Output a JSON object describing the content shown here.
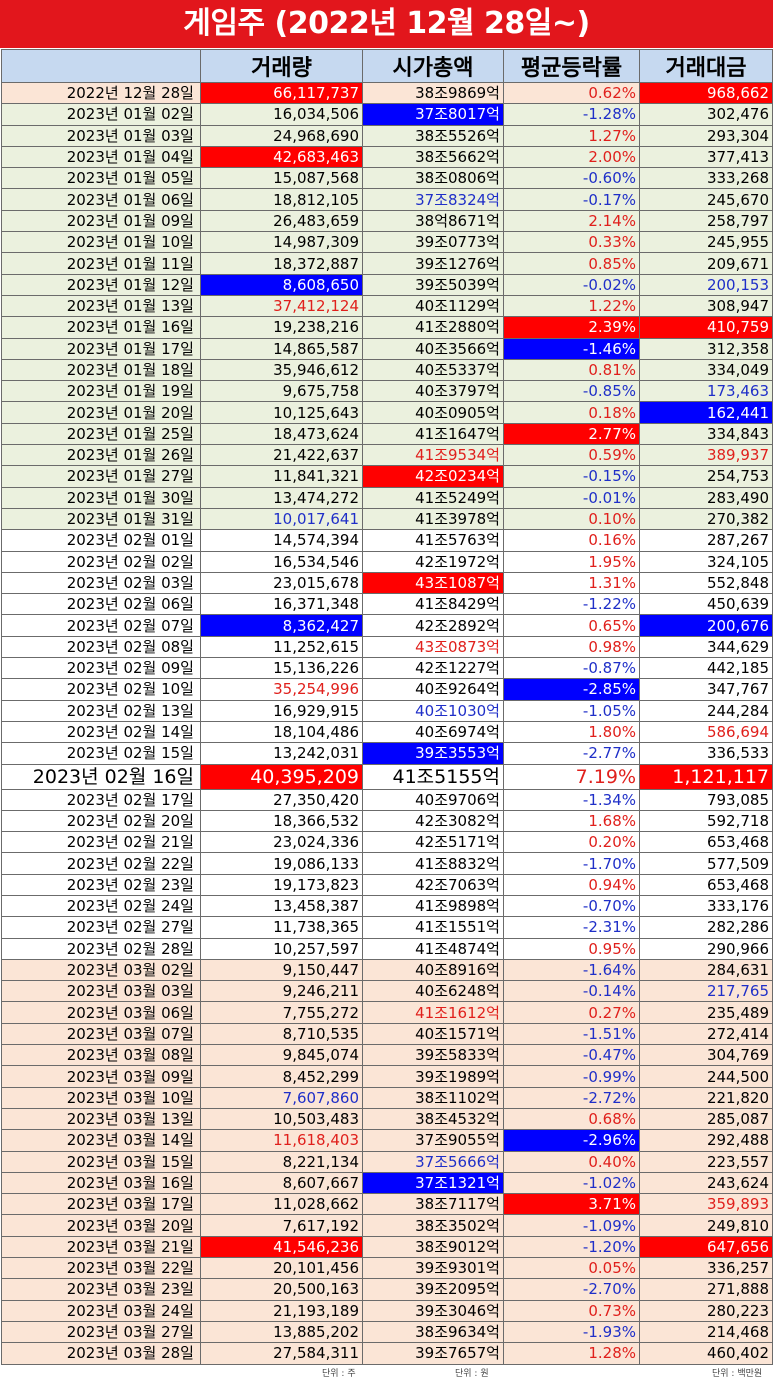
{
  "title": "게임주 (2022년 12월 28일~)",
  "columns": [
    "",
    "거래량",
    "시가총액",
    "평균등락률",
    "거래대금"
  ],
  "units": [
    "단위 : 주",
    "단위 : 원",
    "단위 : 백만원"
  ],
  "colors": {
    "title_bg": "#e2161c",
    "header_bg": "#c6d9f0",
    "band_pink": "#fbe5d6",
    "band_green": "#ebf1de",
    "band_white": "#ffffff",
    "highlight_red": "#ff0000",
    "highlight_blue": "#0000ff",
    "text_red": "#e0201c",
    "text_blue": "#1f2fc8",
    "text_black": "#000000"
  },
  "rows": [
    {
      "date": "2022년 12월 28일",
      "volume": "66,117,737",
      "cap": "38조9869억",
      "change": "0.62%",
      "value": "968,662",
      "band": "pink",
      "vs": "hr",
      "cs": "k",
      "chs": "r",
      "vls": "hr"
    },
    {
      "date": "2023년 01월 02일",
      "volume": "16,034,506",
      "cap": "37조8017억",
      "change": "-1.28%",
      "value": "302,476",
      "band": "green",
      "vs": "k",
      "cs": "hb",
      "chs": "b",
      "vls": "k"
    },
    {
      "date": "2023년 01월 03일",
      "volume": "24,968,690",
      "cap": "38조5526억",
      "change": "1.27%",
      "value": "293,304",
      "band": "green",
      "vs": "k",
      "cs": "k",
      "chs": "r",
      "vls": "k"
    },
    {
      "date": "2023년 01월 04일",
      "volume": "42,683,463",
      "cap": "38조5662억",
      "change": "2.00%",
      "value": "377,413",
      "band": "green",
      "vs": "hr",
      "cs": "k",
      "chs": "r",
      "vls": "k"
    },
    {
      "date": "2023년 01월 05일",
      "volume": "15,087,568",
      "cap": "38조0806억",
      "change": "-0.60%",
      "value": "333,268",
      "band": "green",
      "vs": "k",
      "cs": "k",
      "chs": "b",
      "vls": "k"
    },
    {
      "date": "2023년 01월 06일",
      "volume": "18,812,105",
      "cap": "37조8324억",
      "change": "-0.17%",
      "value": "245,670",
      "band": "green",
      "vs": "k",
      "cs": "b",
      "chs": "b",
      "vls": "k"
    },
    {
      "date": "2023년 01월 09일",
      "volume": "26,483,659",
      "cap": "38억8671억",
      "change": "2.14%",
      "value": "258,797",
      "band": "green",
      "vs": "k",
      "cs": "k",
      "chs": "r",
      "vls": "k"
    },
    {
      "date": "2023년 01월 10일",
      "volume": "14,987,309",
      "cap": "39조0773억",
      "change": "0.33%",
      "value": "245,955",
      "band": "green",
      "vs": "k",
      "cs": "k",
      "chs": "r",
      "vls": "k"
    },
    {
      "date": "2023년 01월 11일",
      "volume": "18,372,887",
      "cap": "39조1276억",
      "change": "0.85%",
      "value": "209,671",
      "band": "green",
      "vs": "k",
      "cs": "k",
      "chs": "r",
      "vls": "k"
    },
    {
      "date": "2023년 01월 12일",
      "volume": "8,608,650",
      "cap": "39조5039억",
      "change": "-0.02%",
      "value": "200,153",
      "band": "green",
      "vs": "hb",
      "cs": "k",
      "chs": "b",
      "vls": "b"
    },
    {
      "date": "2023년 01월 13일",
      "volume": "37,412,124",
      "cap": "40조1129억",
      "change": "1.22%",
      "value": "308,947",
      "band": "green",
      "vs": "r",
      "cs": "k",
      "chs": "r",
      "vls": "k"
    },
    {
      "date": "2023년 01월 16일",
      "volume": "19,238,216",
      "cap": "41조2880억",
      "change": "2.39%",
      "value": "410,759",
      "band": "green",
      "vs": "k",
      "cs": "k",
      "chs": "hr",
      "vls": "hr"
    },
    {
      "date": "2023년 01월 17일",
      "volume": "14,865,587",
      "cap": "40조3566억",
      "change": "-1.46%",
      "value": "312,358",
      "band": "green",
      "vs": "k",
      "cs": "k",
      "chs": "hb",
      "vls": "k"
    },
    {
      "date": "2023년 01월 18일",
      "volume": "35,946,612",
      "cap": "40조5337억",
      "change": "0.81%",
      "value": "334,049",
      "band": "green",
      "vs": "k",
      "cs": "k",
      "chs": "r",
      "vls": "k"
    },
    {
      "date": "2023년 01월 19일",
      "volume": "9,675,758",
      "cap": "40조3797억",
      "change": "-0.85%",
      "value": "173,463",
      "band": "green",
      "vs": "k",
      "cs": "k",
      "chs": "b",
      "vls": "b"
    },
    {
      "date": "2023년 01월 20일",
      "volume": "10,125,643",
      "cap": "40조0905억",
      "change": "0.18%",
      "value": "162,441",
      "band": "green",
      "vs": "k",
      "cs": "k",
      "chs": "r",
      "vls": "hb"
    },
    {
      "date": "2023년 01월 25일",
      "volume": "18,473,624",
      "cap": "41조1647억",
      "change": "2.77%",
      "value": "334,843",
      "band": "green",
      "vs": "k",
      "cs": "k",
      "chs": "hr",
      "vls": "k"
    },
    {
      "date": "2023년 01월 26일",
      "volume": "21,422,637",
      "cap": "41조9534억",
      "change": "0.59%",
      "value": "389,937",
      "band": "green",
      "vs": "k",
      "cs": "r",
      "chs": "r",
      "vls": "r"
    },
    {
      "date": "2023년 01월 27일",
      "volume": "11,841,321",
      "cap": "42조0234억",
      "change": "-0.15%",
      "value": "254,753",
      "band": "green",
      "vs": "k",
      "cs": "hr",
      "chs": "b",
      "vls": "k"
    },
    {
      "date": "2023년 01월 30일",
      "volume": "13,474,272",
      "cap": "41조5249억",
      "change": "-0.01%",
      "value": "283,490",
      "band": "green",
      "vs": "k",
      "cs": "k",
      "chs": "b",
      "vls": "k"
    },
    {
      "date": "2023년 01월 31일",
      "volume": "10,017,641",
      "cap": "41조3978억",
      "change": "0.10%",
      "value": "270,382",
      "band": "green",
      "vs": "b",
      "cs": "k",
      "chs": "r",
      "vls": "k"
    },
    {
      "date": "2023년 02월 01일",
      "volume": "14,574,394",
      "cap": "41조5763억",
      "change": "0.16%",
      "value": "287,267",
      "band": "white",
      "vs": "k",
      "cs": "k",
      "chs": "r",
      "vls": "k"
    },
    {
      "date": "2023년 02월 02일",
      "volume": "16,534,546",
      "cap": "42조1972억",
      "change": "1.95%",
      "value": "324,105",
      "band": "white",
      "vs": "k",
      "cs": "k",
      "chs": "r",
      "vls": "k"
    },
    {
      "date": "2023년 02월 03일",
      "volume": "23,015,678",
      "cap": "43조1087억",
      "change": "1.31%",
      "value": "552,848",
      "band": "white",
      "vs": "k",
      "cs": "hr",
      "chs": "r",
      "vls": "k"
    },
    {
      "date": "2023년 02월 06일",
      "volume": "16,371,348",
      "cap": "41조8429억",
      "change": "-1.22%",
      "value": "450,639",
      "band": "white",
      "vs": "k",
      "cs": "k",
      "chs": "b",
      "vls": "k"
    },
    {
      "date": "2023년 02월 07일",
      "volume": "8,362,427",
      "cap": "42조2892억",
      "change": "0.65%",
      "value": "200,676",
      "band": "white",
      "vs": "hb",
      "cs": "k",
      "chs": "r",
      "vls": "hb"
    },
    {
      "date": "2023년 02월 08일",
      "volume": "11,252,615",
      "cap": "43조0873억",
      "change": "0.98%",
      "value": "344,629",
      "band": "white",
      "vs": "k",
      "cs": "r",
      "chs": "r",
      "vls": "k"
    },
    {
      "date": "2023년 02월 09일",
      "volume": "15,136,226",
      "cap": "42조1227억",
      "change": "-0.87%",
      "value": "442,185",
      "band": "white",
      "vs": "k",
      "cs": "k",
      "chs": "b",
      "vls": "k"
    },
    {
      "date": "2023년 02월 10일",
      "volume": "35,254,996",
      "cap": "40조9264억",
      "change": "-2.85%",
      "value": "347,767",
      "band": "white",
      "vs": "r",
      "cs": "k",
      "chs": "hb",
      "vls": "k"
    },
    {
      "date": "2023년 02월 13일",
      "volume": "16,929,915",
      "cap": "40조1030억",
      "change": "-1.05%",
      "value": "244,284",
      "band": "white",
      "vs": "k",
      "cs": "b",
      "chs": "b",
      "vls": "k"
    },
    {
      "date": "2023년 02월 14일",
      "volume": "18,104,486",
      "cap": "40조6974억",
      "change": "1.80%",
      "value": "586,694",
      "band": "white",
      "vs": "k",
      "cs": "k",
      "chs": "r",
      "vls": "r"
    },
    {
      "date": "2023년 02월 15일",
      "volume": "13,242,031",
      "cap": "39조3553억",
      "change": "-2.77%",
      "value": "336,533",
      "band": "white",
      "vs": "k",
      "cs": "hb",
      "chs": "b",
      "vls": "k"
    },
    {
      "date": "2023년 02월 16일",
      "volume": "40,395,209",
      "cap": "41조5155억",
      "change": "7.19%",
      "value": "1,121,117",
      "band": "white",
      "big": true,
      "vs": "hr",
      "cs": "k",
      "chs": "r",
      "vls": "hr"
    },
    {
      "date": "2023년 02월 17일",
      "volume": "27,350,420",
      "cap": "40조9706억",
      "change": "-1.34%",
      "value": "793,085",
      "band": "white",
      "vs": "k",
      "cs": "k",
      "chs": "b",
      "vls": "k"
    },
    {
      "date": "2023년 02월 20일",
      "volume": "18,366,532",
      "cap": "42조3082억",
      "change": "1.68%",
      "value": "592,718",
      "band": "white",
      "vs": "k",
      "cs": "k",
      "chs": "r",
      "vls": "k"
    },
    {
      "date": "2023년 02월 21일",
      "volume": "23,024,336",
      "cap": "42조5171억",
      "change": "0.20%",
      "value": "653,468",
      "band": "white",
      "vs": "k",
      "cs": "k",
      "chs": "r",
      "vls": "k"
    },
    {
      "date": "2023년 02월 22일",
      "volume": "19,086,133",
      "cap": "41조8832억",
      "change": "-1.70%",
      "value": "577,509",
      "band": "white",
      "vs": "k",
      "cs": "k",
      "chs": "b",
      "vls": "k"
    },
    {
      "date": "2023년 02월 23일",
      "volume": "19,173,823",
      "cap": "42조7063억",
      "change": "0.94%",
      "value": "653,468",
      "band": "white",
      "vs": "k",
      "cs": "k",
      "chs": "r",
      "vls": "k"
    },
    {
      "date": "2023년 02월 24일",
      "volume": "13,458,387",
      "cap": "41조9898억",
      "change": "-0.70%",
      "value": "333,176",
      "band": "white",
      "vs": "k",
      "cs": "k",
      "chs": "b",
      "vls": "k"
    },
    {
      "date": "2023년 02월 27일",
      "volume": "11,738,365",
      "cap": "41조1551억",
      "change": "-2.31%",
      "value": "282,286",
      "band": "white",
      "vs": "k",
      "cs": "k",
      "chs": "b",
      "vls": "k"
    },
    {
      "date": "2023년 02월 28일",
      "volume": "10,257,597",
      "cap": "41조4874억",
      "change": "0.95%",
      "value": "290,966",
      "band": "white",
      "vs": "k",
      "cs": "k",
      "chs": "r",
      "vls": "k"
    },
    {
      "date": "2023년 03월 02일",
      "volume": "9,150,447",
      "cap": "40조8916억",
      "change": "-1.64%",
      "value": "284,631",
      "band": "pink",
      "vs": "k",
      "cs": "k",
      "chs": "b",
      "vls": "k"
    },
    {
      "date": "2023년 03월 03일",
      "volume": "9,246,211",
      "cap": "40조6248억",
      "change": "-0.14%",
      "value": "217,765",
      "band": "pink",
      "vs": "k",
      "cs": "k",
      "chs": "b",
      "vls": "b"
    },
    {
      "date": "2023년 03월 06일",
      "volume": "7,755,272",
      "cap": "41조1612억",
      "change": "0.27%",
      "value": "235,489",
      "band": "pink",
      "vs": "k",
      "cs": "r",
      "chs": "r",
      "vls": "k"
    },
    {
      "date": "2023년 03월 07일",
      "volume": "8,710,535",
      "cap": "40조1571억",
      "change": "-1.51%",
      "value": "272,414",
      "band": "pink",
      "vs": "k",
      "cs": "k",
      "chs": "b",
      "vls": "k"
    },
    {
      "date": "2023년 03월 08일",
      "volume": "9,845,074",
      "cap": "39조5833억",
      "change": "-0.47%",
      "value": "304,769",
      "band": "pink",
      "vs": "k",
      "cs": "k",
      "chs": "b",
      "vls": "k"
    },
    {
      "date": "2023년 03월 09일",
      "volume": "8,452,299",
      "cap": "39조1989억",
      "change": "-0.99%",
      "value": "244,500",
      "band": "pink",
      "vs": "k",
      "cs": "k",
      "chs": "b",
      "vls": "k"
    },
    {
      "date": "2023년 03월 10일",
      "volume": "7,607,860",
      "cap": "38조1102억",
      "change": "-2.72%",
      "value": "221,820",
      "band": "pink",
      "vs": "b",
      "cs": "k",
      "chs": "b",
      "vls": "k"
    },
    {
      "date": "2023년 03월 13일",
      "volume": "10,503,483",
      "cap": "38조4532억",
      "change": "0.68%",
      "value": "285,087",
      "band": "pink",
      "vs": "k",
      "cs": "k",
      "chs": "r",
      "vls": "k"
    },
    {
      "date": "2023년 03월 14일",
      "volume": "11,618,403",
      "cap": "37조9055억",
      "change": "-2.96%",
      "value": "292,488",
      "band": "pink",
      "vs": "r",
      "cs": "k",
      "chs": "hb",
      "vls": "k"
    },
    {
      "date": "2023년 03월 15일",
      "volume": "8,221,134",
      "cap": "37조5666억",
      "change": "0.40%",
      "value": "223,557",
      "band": "pink",
      "vs": "k",
      "cs": "b",
      "chs": "r",
      "vls": "k"
    },
    {
      "date": "2023년 03월 16일",
      "volume": "8,607,667",
      "cap": "37조1321억",
      "change": "-1.02%",
      "value": "243,624",
      "band": "pink",
      "vs": "k",
      "cs": "hb",
      "chs": "b",
      "vls": "k"
    },
    {
      "date": "2023년 03월 17일",
      "volume": "11,028,662",
      "cap": "38조7117억",
      "change": "3.71%",
      "value": "359,893",
      "band": "pink",
      "vs": "k",
      "cs": "k",
      "chs": "hr",
      "vls": "r"
    },
    {
      "date": "2023년 03월 20일",
      "volume": "7,617,192",
      "cap": "38조3502억",
      "change": "-1.09%",
      "value": "249,810",
      "band": "pink",
      "vs": "k",
      "cs": "k",
      "chs": "b",
      "vls": "k"
    },
    {
      "date": "2023년 03월 21일",
      "volume": "41,546,236",
      "cap": "38조9012억",
      "change": "-1.20%",
      "value": "647,656",
      "band": "pink",
      "vs": "hr",
      "cs": "k",
      "chs": "b",
      "vls": "hr"
    },
    {
      "date": "2023년 03월 22일",
      "volume": "20,101,456",
      "cap": "39조9301억",
      "change": "0.05%",
      "value": "336,257",
      "band": "pink",
      "vs": "k",
      "cs": "k",
      "chs": "r",
      "vls": "k"
    },
    {
      "date": "2023년 03월 23일",
      "volume": "20,500,163",
      "cap": "39조2095억",
      "change": "-2.70%",
      "value": "271,888",
      "band": "pink",
      "vs": "k",
      "cs": "k",
      "chs": "b",
      "vls": "k"
    },
    {
      "date": "2023년 03월 24일",
      "volume": "21,193,189",
      "cap": "39조3046억",
      "change": "0.73%",
      "value": "280,223",
      "band": "pink",
      "vs": "k",
      "cs": "k",
      "chs": "r",
      "vls": "k"
    },
    {
      "date": "2023년 03월 27일",
      "volume": "13,885,202",
      "cap": "38조9634억",
      "change": "-1.93%",
      "value": "214,468",
      "band": "pink",
      "vs": "k",
      "cs": "k",
      "chs": "b",
      "vls": "k"
    },
    {
      "date": "2023년 03월 28일",
      "volume": "27,584,311",
      "cap": "39조7657억",
      "change": "1.28%",
      "value": "460,402",
      "band": "pink",
      "vs": "k",
      "cs": "k",
      "chs": "r",
      "vls": "k"
    }
  ]
}
